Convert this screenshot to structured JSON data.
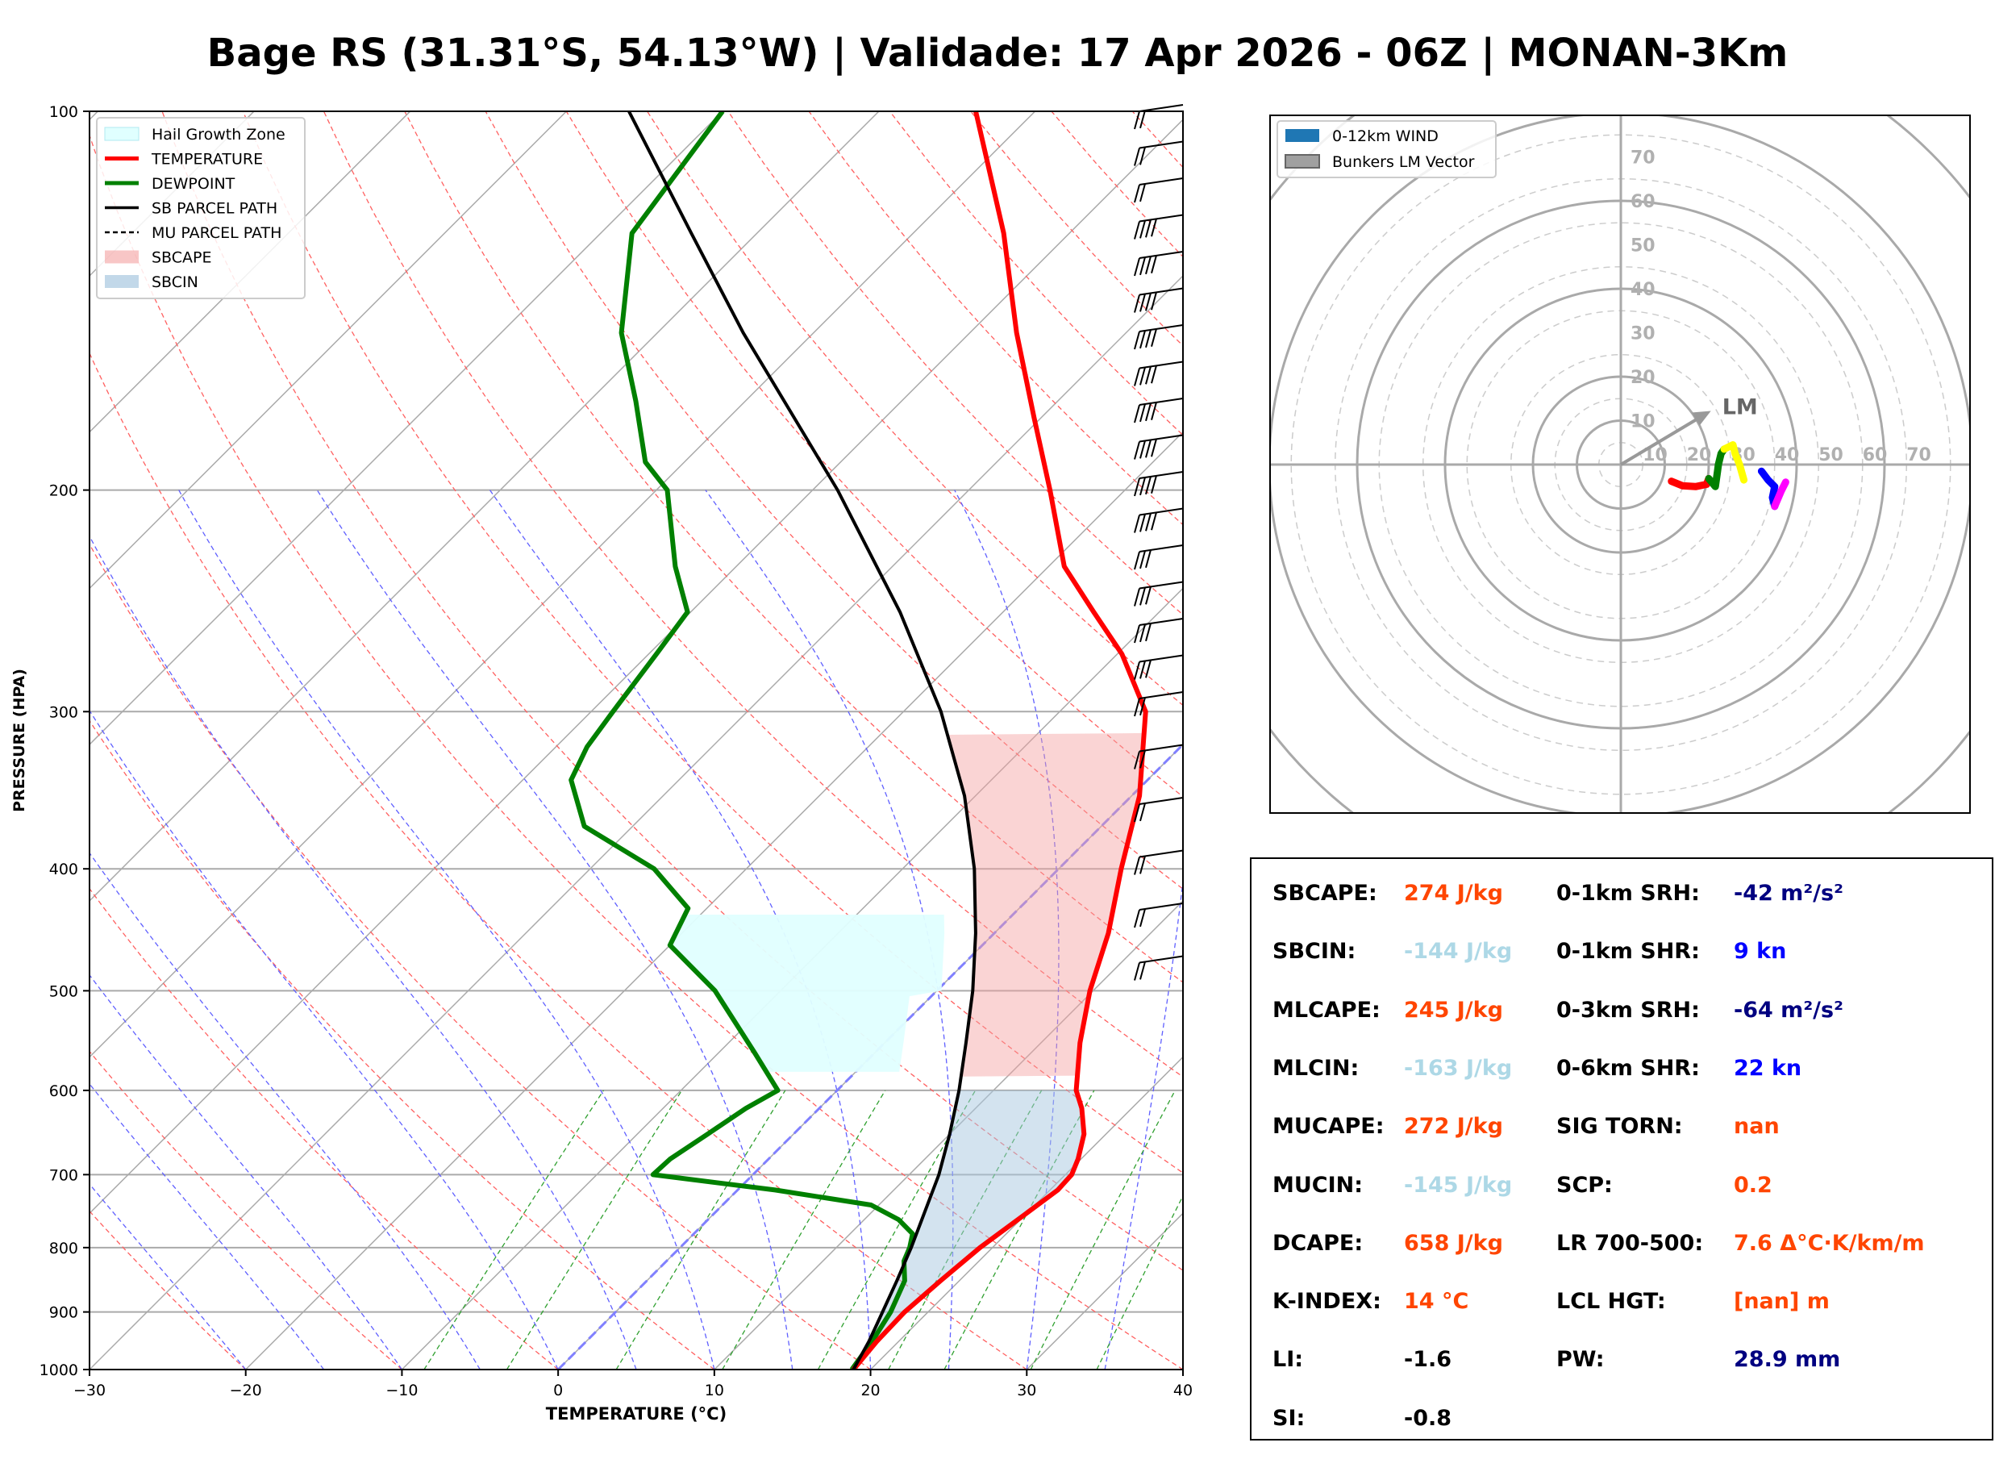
{
  "title": "Bage RS (31.31°S, 54.13°W) | Validade: 17 Apr 2026 - 06Z | MONAN-3Km",
  "colors": {
    "temperature": "#ff0000",
    "dewpoint": "#008000",
    "parcel": "#000000",
    "cape_fill": "#f4a0a0",
    "cin_fill": "#a8c8e0",
    "hail": "#e0ffff",
    "value_orange": "#ff4500",
    "value_lightblue": "#add8e6",
    "value_navy": "#000080",
    "value_blue": "#0000ff",
    "value_black": "#000000"
  },
  "chart_data": [
    {
      "type": "skew-t",
      "xlabel": "TEMPERATURE (°C)",
      "ylabel": "PRESSURE (HPA)",
      "xlim": [
        -30,
        40
      ],
      "ylim": [
        1000,
        100
      ],
      "x_ticks": [
        "−30",
        "−20",
        "−10",
        "0",
        "10",
        "20",
        "30",
        "40"
      ],
      "x_tick_values": [
        -30,
        -20,
        -10,
        0,
        10,
        20,
        30,
        40
      ],
      "y_ticks": [
        "100",
        "200",
        "300",
        "400",
        "500",
        "600",
        "700",
        "800",
        "900",
        "1000"
      ],
      "y_tick_values": [
        100,
        200,
        300,
        400,
        500,
        600,
        700,
        800,
        900,
        1000
      ],
      "legend": [
        {
          "label": "Hail Growth Zone",
          "style": "hail"
        },
        {
          "label": "TEMPERATURE",
          "style": "temp"
        },
        {
          "label": "DEWPOINT",
          "style": "dew"
        },
        {
          "label": "SB PARCEL PATH",
          "style": "parcel"
        },
        {
          "label": "MU PARCEL PATH",
          "style": "mu"
        },
        {
          "label": "SBCAPE",
          "style": "cape"
        },
        {
          "label": "SBCIN",
          "style": "cin"
        }
      ],
      "series": [
        {
          "name": "TEMPERATURE",
          "points": [
            [
              1000,
              18.9
            ],
            [
              950,
              18.6
            ],
            [
              900,
              18.5
            ],
            [
              850,
              18.8
            ],
            [
              800,
              19.2
            ],
            [
              750,
              20.0
            ],
            [
              720,
              20.5
            ],
            [
              700,
              20.4
            ],
            [
              680,
              19.8
            ],
            [
              650,
              18.6
            ],
            [
              620,
              16.8
            ],
            [
              600,
              15.3
            ],
            [
              550,
              12.5
            ],
            [
              500,
              9.8
            ],
            [
              450,
              7.3
            ],
            [
              400,
              4.0
            ],
            [
              350,
              0.5
            ],
            [
              300,
              -4.5
            ],
            [
              270,
              -9.7
            ],
            [
              250,
              -14.2
            ],
            [
              230,
              -19.0
            ],
            [
              200,
              -24.8
            ],
            [
              175,
              -30.5
            ],
            [
              150,
              -37.0
            ],
            [
              125,
              -44.2
            ],
            [
              100,
              -53.8
            ]
          ]
        },
        {
          "name": "DEWPOINT",
          "points": [
            [
              1000,
              18.8
            ],
            [
              950,
              18.3
            ],
            [
              900,
              17.6
            ],
            [
              850,
              16.5
            ],
            [
              820,
              15.2
            ],
            [
              800,
              14.7
            ],
            [
              780,
              14.0
            ],
            [
              760,
              12.2
            ],
            [
              740,
              9.5
            ],
            [
              720,
              2.4
            ],
            [
              700,
              -6.4
            ],
            [
              680,
              -6.3
            ],
            [
              650,
              -5.5
            ],
            [
              620,
              -4.7
            ],
            [
              600,
              -3.8
            ],
            [
              560,
              -7.7
            ],
            [
              500,
              -14.2
            ],
            [
              460,
              -20.0
            ],
            [
              430,
              -21.2
            ],
            [
              400,
              -25.9
            ],
            [
              370,
              -33.1
            ],
            [
              340,
              -36.9
            ],
            [
              320,
              -38.0
            ],
            [
              300,
              -38.6
            ],
            [
              270,
              -39.5
            ],
            [
              250,
              -40.2
            ],
            [
              230,
              -43.9
            ],
            [
              200,
              -49.3
            ],
            [
              190,
              -52.5
            ],
            [
              170,
              -57.0
            ],
            [
              150,
              -62.3
            ],
            [
              125,
              -68.0
            ],
            [
              100,
              -70.0
            ]
          ]
        },
        {
          "name": "SB PARCEL PATH",
          "points": [
            [
              1000,
              18.9
            ],
            [
              950,
              18.1
            ],
            [
              920,
              17.5
            ],
            [
              850,
              16.0
            ],
            [
              800,
              14.8
            ],
            [
              750,
              13.4
            ],
            [
              700,
              11.9
            ],
            [
              650,
              10.0
            ],
            [
              600,
              7.8
            ],
            [
              550,
              5.2
            ],
            [
              500,
              2.3
            ],
            [
              450,
              -1.2
            ],
            [
              400,
              -5.4
            ],
            [
              350,
              -10.7
            ],
            [
              300,
              -17.6
            ],
            [
              250,
              -26.6
            ],
            [
              200,
              -38.4
            ],
            [
              150,
              -54.5
            ],
            [
              125,
              -64.2
            ],
            [
              100,
              -76.0
            ]
          ]
        }
      ],
      "hail_growth_zone": {
        "p_bottom": 580,
        "p_top": 435,
        "t_left": -10,
        "t_right": -30
      }
    },
    {
      "type": "hodograph",
      "legend": [
        {
          "label": "0-12km WIND",
          "style": "wind"
        },
        {
          "label": "Bunkers LM Vector",
          "style": "lm"
        }
      ],
      "ring_labels": [
        "10",
        "20",
        "30",
        "40",
        "50",
        "60",
        "70"
      ],
      "ring_values": [
        10,
        20,
        30,
        40,
        50,
        60,
        70
      ],
      "lm_label": "LM",
      "lm_vector": {
        "u": 20.5,
        "v": 12.2
      },
      "segments": [
        {
          "color": "#ff0000",
          "points": [
            [
              11.5,
              -3.8
            ],
            [
              14.0,
              -4.8
            ],
            [
              17.0,
              -5.0
            ],
            [
              19.5,
              -4.5
            ],
            [
              20.0,
              -3.2
            ]
          ]
        },
        {
          "color": "#008000",
          "points": [
            [
              20.0,
              -3.2
            ],
            [
              21.5,
              -5.0
            ],
            [
              22.0,
              -1.5
            ],
            [
              22.2,
              0.0
            ],
            [
              22.8,
              2.5
            ],
            [
              23.5,
              3.5
            ]
          ]
        },
        {
          "color": "#ffff00",
          "points": [
            [
              23.5,
              3.5
            ],
            [
              25.5,
              4.5
            ],
            [
              26.0,
              2.5
            ],
            [
              27.0,
              0.0
            ],
            [
              28.0,
              -3.5
            ]
          ]
        },
        {
          "color": "#0000ff",
          "points": [
            [
              32.0,
              -1.5
            ],
            [
              33.5,
              -3.5
            ],
            [
              35.0,
              -5.0
            ],
            [
              34.5,
              -7.5
            ],
            [
              35.0,
              -9.5
            ]
          ]
        },
        {
          "color": "#ff00ff",
          "points": [
            [
              35.0,
              -9.5
            ],
            [
              36.5,
              -6.0
            ],
            [
              37.5,
              -4.0
            ]
          ]
        }
      ]
    }
  ],
  "params": {
    "left": [
      {
        "label": "SBCAPE:",
        "value": "274 J/kg",
        "color": "#ff4500"
      },
      {
        "label": "SBCIN:",
        "value": "-144 J/kg",
        "color": "#add8e6"
      },
      {
        "label": "MLCAPE:",
        "value": "245 J/kg",
        "color": "#ff4500"
      },
      {
        "label": "MLCIN:",
        "value": "-163 J/kg",
        "color": "#add8e6"
      },
      {
        "label": "MUCAPE:",
        "value": "272 J/kg",
        "color": "#ff4500"
      },
      {
        "label": "MUCIN:",
        "value": "-145 J/kg",
        "color": "#add8e6"
      },
      {
        "label": "DCAPE:",
        "value": "658 J/kg",
        "color": "#ff4500"
      },
      {
        "label": "K-INDEX:",
        "value": "14 °C",
        "color": "#ff4500"
      },
      {
        "label": "LI:",
        "value": "-1.6",
        "color": "#000000"
      },
      {
        "label": "SI:",
        "value": "-0.8",
        "color": "#000000"
      }
    ],
    "right": [
      {
        "label": "0-1km SRH:",
        "value": "-42 m²/s²",
        "color": "#000080"
      },
      {
        "label": "0-1km SHR:",
        "value": "9 kn",
        "color": "#0000ff"
      },
      {
        "label": "0-3km SRH:",
        "value": "-64 m²/s²",
        "color": "#000080"
      },
      {
        "label": "0-6km SHR:",
        "value": "22 kn",
        "color": "#0000ff"
      },
      {
        "label": "SIG TORN:",
        "value": "nan",
        "color": "#ff4500"
      },
      {
        "label": "SCP:",
        "value": "0.2",
        "color": "#ff4500"
      },
      {
        "label": "LR 700-500:",
        "value": "7.6 Δ°C·K/km/m",
        "color": "#ff4500"
      },
      {
        "label": "LCL HGT:",
        "value": "[nan] m",
        "color": "#ff4500"
      },
      {
        "label": "PW:",
        "value": "28.9 mm",
        "color": "#000080"
      }
    ]
  }
}
